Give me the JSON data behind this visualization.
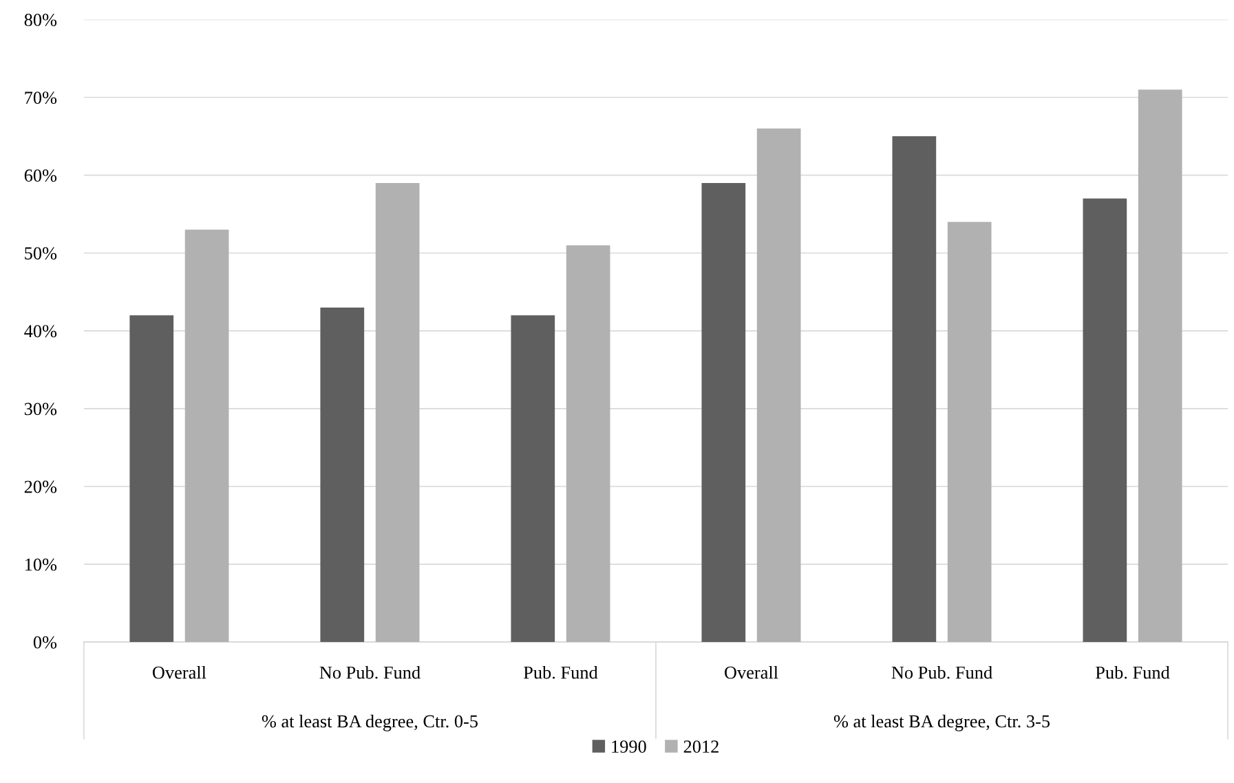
{
  "chart_data": {
    "type": "bar",
    "categories": [
      "Overall",
      "No Pub. Fund",
      "Pub. Fund",
      "Overall",
      "No Pub. Fund",
      "Pub. Fund"
    ],
    "series": [
      {
        "name": "1990",
        "color": "#5f5f5f",
        "values": [
          42,
          43,
          42,
          59,
          65,
          57
        ]
      },
      {
        "name": "2012",
        "color": "#b1b1b1",
        "values": [
          53,
          59,
          51,
          66,
          54,
          71
        ]
      }
    ],
    "annotations": [
      "% at least BA degree, Ctr. 0-5",
      "% at least BA degree, Ctr. 3-5"
    ],
    "ylim": [
      0,
      80
    ],
    "yticks": [
      {
        "value": 0,
        "label": "0%"
      },
      {
        "value": 10,
        "label": "10%"
      },
      {
        "value": 20,
        "label": "20%"
      },
      {
        "value": 30,
        "label": "30%"
      },
      {
        "value": 40,
        "label": "40%"
      },
      {
        "value": 50,
        "label": "50%"
      },
      {
        "value": 60,
        "label": "60%"
      },
      {
        "value": 70,
        "label": "70%"
      },
      {
        "value": 80,
        "label": "80%"
      }
    ],
    "grid": "y",
    "legend": "bottom"
  }
}
